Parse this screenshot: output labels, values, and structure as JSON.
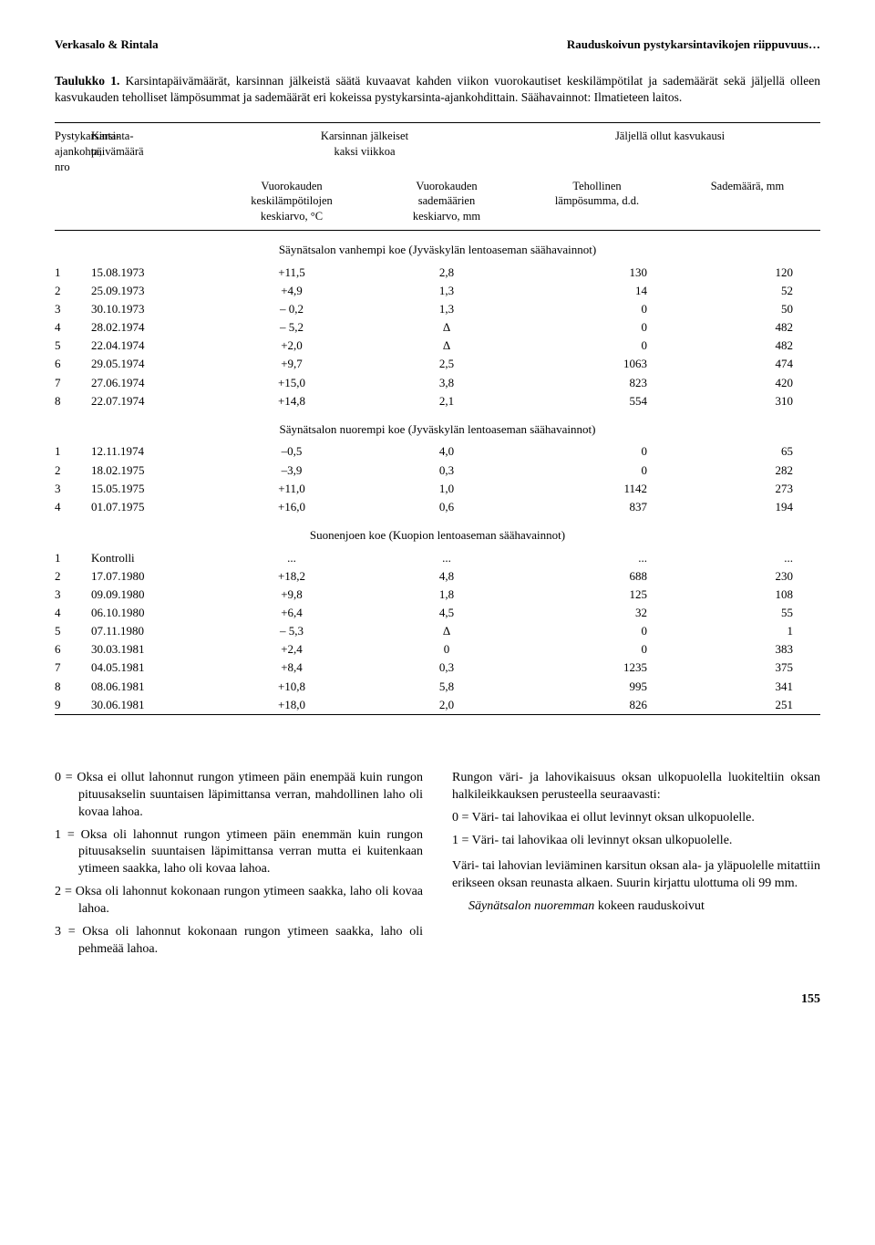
{
  "running_head": {
    "left": "Verkasalo & Rintala",
    "right": "Rauduskoivun pystykarsintavikojen riippuvuus…"
  },
  "table_title_bold": "Taulukko 1.",
  "table_title_text": " Karsintapäivämäärät, karsinnan jälkeistä säätä kuvaavat kahden viikon vuorokautiset keskilämpötilat ja sademäärät sekä jäljellä olleen kasvukauden teholliset lämpösummat ja sademäärät eri kokeissa pystykarsinta-ajankohdittain. Säähavainnot: Ilmatieteen laitos.",
  "columns": {
    "nro": "Pystykarsinta-\najankohta,\nnro",
    "date": "Karsinta-\npäivämäärä",
    "two_week": "Karsinnan jälkeiset\nkaksi viikkoa",
    "season": "Jäljellä ollut kasvukausi",
    "temp": "Vuorokauden\nkeskilämpötilojen\nkeskiarvo, °C",
    "rain": "Vuorokauden\nsademäärien\nkeskiarvo, mm",
    "eff": "Tehollinen\nlämpösumma, d.d.",
    "mm": "Sademäärä, mm"
  },
  "sections": [
    {
      "title": "Säynätsalon vanhempi koe (Jyväskylän lentoaseman säähavainnot)",
      "rows": [
        [
          "1",
          "15.08.1973",
          "+11,5",
          "2,8",
          "130",
          "120"
        ],
        [
          "2",
          "25.09.1973",
          "+4,9",
          "1,3",
          "14",
          "52"
        ],
        [
          "3",
          "30.10.1973",
          "– 0,2",
          "1,3",
          "0",
          "50"
        ],
        [
          "4",
          "28.02.1974",
          "– 5,2",
          "Δ",
          "0",
          "482"
        ],
        [
          "5",
          "22.04.1974",
          "+2,0",
          "Δ",
          "0",
          "482"
        ],
        [
          "6",
          "29.05.1974",
          "+9,7",
          "2,5",
          "1063",
          "474"
        ],
        [
          "7",
          "27.06.1974",
          "+15,0",
          "3,8",
          "823",
          "420"
        ],
        [
          "8",
          "22.07.1974",
          "+14,8",
          "2,1",
          "554",
          "310"
        ]
      ]
    },
    {
      "title": "Säynätsalon nuorempi koe (Jyväskylän lentoaseman säähavainnot)",
      "rows": [
        [
          "1",
          "12.11.1974",
          "–0,5",
          "4,0",
          "0",
          "65"
        ],
        [
          "2",
          "18.02.1975",
          "–3,9",
          "0,3",
          "0",
          "282"
        ],
        [
          "3",
          "15.05.1975",
          "+11,0",
          "1,0",
          "1142",
          "273"
        ],
        [
          "4",
          "01.07.1975",
          "+16,0",
          "0,6",
          "837",
          "194"
        ]
      ]
    },
    {
      "title": "Suonenjoen koe (Kuopion lentoaseman säähavainnot)",
      "rows": [
        [
          "1",
          "Kontrolli",
          "...",
          "...",
          "...",
          "..."
        ],
        [
          "2",
          "17.07.1980",
          "+18,2",
          "4,8",
          "688",
          "230"
        ],
        [
          "3",
          "09.09.1980",
          "+9,8",
          "1,8",
          "125",
          "108"
        ],
        [
          "4",
          "06.10.1980",
          "+6,4",
          "4,5",
          "32",
          "55"
        ],
        [
          "5",
          "07.11.1980",
          "– 5,3",
          "Δ",
          "0",
          "1"
        ],
        [
          "6",
          "30.03.1981",
          "+2,4",
          "0",
          "0",
          "383"
        ],
        [
          "7",
          "04.05.1981",
          "+8,4",
          "0,3",
          "1235",
          "375"
        ],
        [
          "8",
          "08.06.1981",
          "+10,8",
          "5,8",
          "995",
          "341"
        ],
        [
          "9",
          "30.06.1981",
          "+18,0",
          "2,0",
          "826",
          "251"
        ]
      ]
    }
  ],
  "left_column_defs": [
    "0 = Oksa ei ollut lahonnut rungon ytimeen päin enempää kuin rungon pituusakselin suuntaisen läpimittansa verran, mahdollinen laho oli kovaa lahoa.",
    "1 = Oksa oli lahonnut rungon ytimeen päin enemmän kuin rungon pituusakselin suuntaisen läpimittansa verran mutta ei kuitenkaan ytimeen saakka, laho oli kovaa lahoa.",
    "2 = Oksa oli lahonnut kokonaan rungon ytimeen saakka, laho oli kovaa lahoa.",
    "3 = Oksa oli lahonnut kokonaan rungon ytimeen saakka, laho oli pehmeää lahoa."
  ],
  "right_column": {
    "p1": "Rungon väri- ja lahovikaisuus oksan ulkopuolella luokiteltiin oksan halkileikkauksen perusteella seuraavasti:",
    "defs": [
      "0 = Väri- tai lahovikaa ei ollut levinnyt oksan ulkopuolelle.",
      "1 = Väri- tai lahovikaa oli levinnyt oksan ulkopuolelle."
    ],
    "p2": "Väri- tai lahovian leviäminen karsitun oksan ala- ja yläpuolelle mitattiin erikseen oksan reunasta alkaen. Suurin kirjattu ulottuma oli 99 mm.",
    "p3_italic": "Säynätsalon nuoremman",
    "p3_rest": " kokeen rauduskoivut"
  },
  "page_number": "155"
}
